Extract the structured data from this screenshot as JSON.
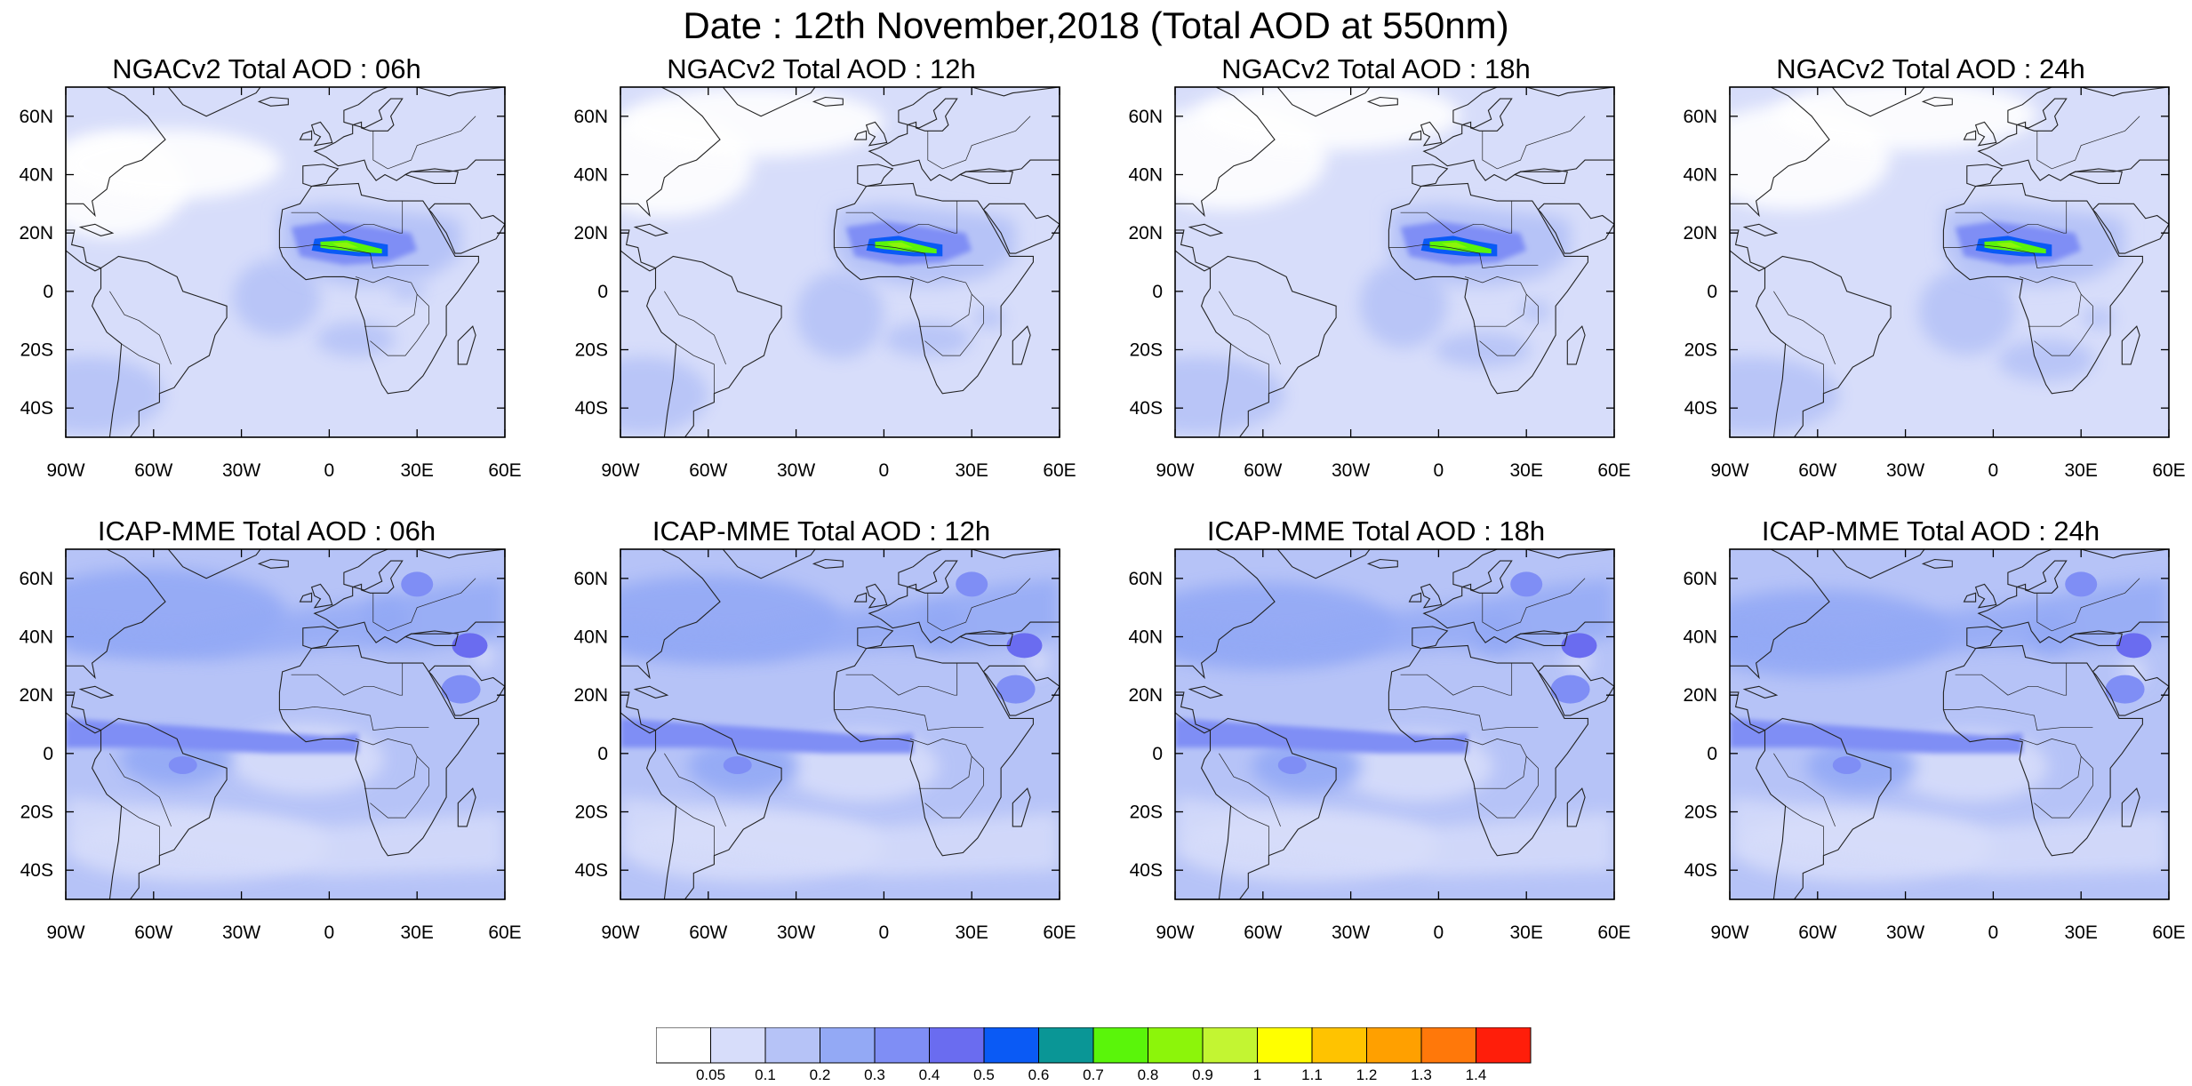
{
  "title": "Date : 12th November,2018 (Total AOD at 550nm)",
  "panels": [
    {
      "title": "NGACv2 Total AOD : 06h",
      "model": "NGACv2",
      "hour": "06h",
      "plumes": [
        [
          0.1,
          0.28,
          0.35,
          0.3,
          0.08
        ],
        [
          0.24,
          0.22,
          0.5,
          0.2,
          0.12
        ],
        [
          0.66,
          0.72,
          0.18,
          0.1,
          0.06
        ],
        [
          0.05,
          0.88,
          0.35,
          0.22,
          0.05
        ],
        [
          0.78,
          0.58,
          0.08,
          0.05,
          0.35
        ],
        [
          0.48,
          0.6,
          0.2,
          0.22,
          0.05
        ]
      ]
    },
    {
      "title": "NGACv2 Total AOD : 12h",
      "model": "NGACv2",
      "hour": "12h",
      "plumes": [
        [
          0.1,
          0.22,
          0.4,
          0.3,
          0.08
        ],
        [
          0.3,
          0.1,
          0.6,
          0.2,
          0.12
        ],
        [
          0.7,
          0.72,
          0.2,
          0.1,
          0.06
        ],
        [
          0.05,
          0.88,
          0.3,
          0.22,
          0.05
        ],
        [
          0.84,
          0.66,
          0.07,
          0.06,
          0.4
        ],
        [
          0.5,
          0.65,
          0.2,
          0.25,
          0.05
        ]
      ]
    },
    {
      "title": "NGACv2 Total AOD : 18h",
      "model": "NGACv2",
      "hour": "18h",
      "plumes": [
        [
          0.12,
          0.2,
          0.45,
          0.3,
          0.08
        ],
        [
          0.35,
          0.08,
          0.6,
          0.2,
          0.12
        ],
        [
          0.7,
          0.75,
          0.22,
          0.1,
          0.06
        ],
        [
          0.05,
          0.88,
          0.4,
          0.22,
          0.05
        ],
        [
          0.82,
          0.64,
          0.07,
          0.06,
          0.35
        ],
        [
          0.52,
          0.62,
          0.2,
          0.25,
          0.05
        ]
      ]
    },
    {
      "title": "NGACv2 Total AOD : 24h",
      "model": "NGACv2",
      "hour": "24h",
      "plumes": [
        [
          0.14,
          0.2,
          0.45,
          0.3,
          0.08
        ],
        [
          0.4,
          0.08,
          0.6,
          0.2,
          0.12
        ],
        [
          0.72,
          0.78,
          0.22,
          0.12,
          0.08
        ],
        [
          0.05,
          0.88,
          0.4,
          0.22,
          0.05
        ],
        [
          0.84,
          0.66,
          0.07,
          0.06,
          0.4
        ],
        [
          0.54,
          0.64,
          0.22,
          0.25,
          0.05
        ]
      ]
    },
    {
      "title": "ICAP-MME Total AOD : 06h",
      "model": "ICAP-MME",
      "hour": "06h",
      "plumes": [
        [
          0.2,
          0.18,
          0.6,
          0.25,
          0.12
        ],
        [
          0.55,
          0.6,
          0.35,
          0.2,
          0.1
        ],
        [
          0.73,
          0.2,
          0.1,
          0.12,
          0.3
        ],
        [
          0.3,
          0.85,
          0.6,
          0.2,
          0.1
        ],
        [
          0.25,
          0.6,
          0.25,
          0.15,
          0.1
        ],
        [
          0.95,
          0.3,
          0.05,
          0.08,
          0.3
        ]
      ]
    },
    {
      "title": "ICAP-MME Total AOD : 12h",
      "model": "ICAP-MME",
      "hour": "12h",
      "plumes": [
        [
          0.2,
          0.2,
          0.6,
          0.25,
          0.12
        ],
        [
          0.55,
          0.62,
          0.35,
          0.2,
          0.1
        ],
        [
          0.73,
          0.22,
          0.1,
          0.12,
          0.3
        ],
        [
          0.3,
          0.85,
          0.6,
          0.2,
          0.1
        ],
        [
          0.28,
          0.62,
          0.25,
          0.15,
          0.1
        ],
        [
          0.95,
          0.32,
          0.05,
          0.08,
          0.45
        ]
      ]
    },
    {
      "title": "ICAP-MME Total AOD : 18h",
      "model": "ICAP-MME",
      "hour": "18h",
      "plumes": [
        [
          0.2,
          0.22,
          0.6,
          0.25,
          0.12
        ],
        [
          0.55,
          0.62,
          0.35,
          0.2,
          0.1
        ],
        [
          0.73,
          0.24,
          0.1,
          0.12,
          0.25
        ],
        [
          0.3,
          0.85,
          0.6,
          0.2,
          0.1
        ],
        [
          0.3,
          0.62,
          0.25,
          0.15,
          0.1
        ],
        [
          0.92,
          0.32,
          0.06,
          0.08,
          0.45
        ]
      ]
    },
    {
      "title": "ICAP-MME Total AOD : 24h",
      "model": "ICAP-MME",
      "hour": "24h",
      "plumes": [
        [
          0.2,
          0.24,
          0.6,
          0.25,
          0.12
        ],
        [
          0.55,
          0.62,
          0.35,
          0.2,
          0.1
        ],
        [
          0.73,
          0.24,
          0.1,
          0.12,
          0.25
        ],
        [
          0.3,
          0.85,
          0.6,
          0.2,
          0.1
        ],
        [
          0.3,
          0.62,
          0.25,
          0.15,
          0.1
        ],
        [
          0.92,
          0.35,
          0.06,
          0.08,
          0.45
        ]
      ]
    }
  ],
  "map": {
    "lon_range": [
      -90,
      60
    ],
    "lat_range": [
      -50,
      70
    ],
    "lon_ticks": [
      {
        "v": -90,
        "label": "90W"
      },
      {
        "v": -60,
        "label": "60W"
      },
      {
        "v": -30,
        "label": "30W"
      },
      {
        "v": 0,
        "label": "0"
      },
      {
        "v": 30,
        "label": "30E"
      },
      {
        "v": 60,
        "label": "60E"
      }
    ],
    "lat_ticks": [
      {
        "v": 60,
        "label": "60N"
      },
      {
        "v": 40,
        "label": "40N"
      },
      {
        "v": 20,
        "label": "20N"
      },
      {
        "v": 0,
        "label": "0"
      },
      {
        "v": -20,
        "label": "20S"
      },
      {
        "v": -40,
        "label": "40S"
      }
    ]
  },
  "colorbar": {
    "colors": [
      "#ffffff",
      "#d7ddfa",
      "#b6c3f7",
      "#93a9f5",
      "#7f8ef5",
      "#6a6cf0",
      "#0a5af5",
      "#0a9696",
      "#5af50a",
      "#8cf50a",
      "#c3f532",
      "#ffff00",
      "#ffc300",
      "#ffa000",
      "#ff780a",
      "#ff1e0a"
    ],
    "labels": [
      "0.05",
      "0.1",
      "0.2",
      "0.3",
      "0.4",
      "0.5",
      "0.6",
      "0.7",
      "0.8",
      "0.9",
      "1",
      "1.1",
      "1.2",
      "1.3",
      "1.4"
    ]
  }
}
